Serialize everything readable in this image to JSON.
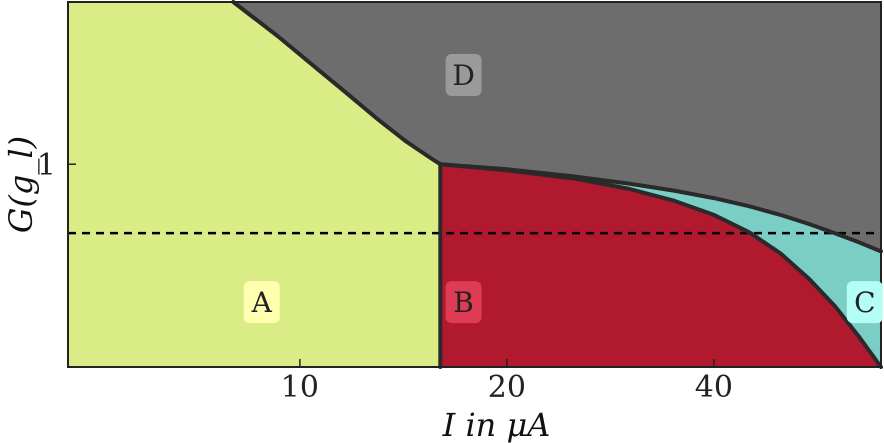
{
  "chart_data": {
    "type": "area",
    "title": "",
    "xlabel": "I in μA",
    "ylabel": "G(g_l)",
    "xlim": [
      4.6,
      70
    ],
    "ylim": [
      0,
      1.8
    ],
    "x_ticks": [
      10,
      20,
      40
    ],
    "x_tick_labels": [
      "10",
      "20",
      "40"
    ],
    "y_ticks": [
      1
    ],
    "y_tick_labels": [
      "1"
    ],
    "grid": false,
    "legend": "none",
    "horizontal_reference": {
      "y": 0.66,
      "style": "dashed",
      "color": "#000000"
    },
    "curves": {
      "boundary_AD": {
        "x": [
          8.0,
          9.3,
          10.6,
          11.7,
          13.0,
          14.3,
          15.5,
          16.0
        ],
        "y": [
          1.8,
          1.63,
          1.47,
          1.35,
          1.22,
          1.11,
          1.03,
          1.0
        ]
      },
      "boundary_AB": {
        "x": [
          16.0,
          16.0
        ],
        "y": [
          1.0,
          0.0
        ]
      },
      "upper_boundary": {
        "x": [
          16.0,
          20.0,
          25.0,
          30.0,
          35.0,
          40.0,
          45.0,
          50.0,
          55.0,
          60.0,
          65.0,
          70.0
        ],
        "y": [
          1.0,
          0.975,
          0.94,
          0.905,
          0.87,
          0.833,
          0.793,
          0.75,
          0.705,
          0.66,
          0.615,
          0.57
        ]
      },
      "boundary_BC": {
        "x": [
          16.0,
          20.0,
          25.0,
          30.0,
          35.0,
          40.0,
          45.0,
          50.0,
          55.0,
          60.0,
          65.0,
          70.0
        ],
        "y": [
          1.0,
          0.97,
          0.93,
          0.88,
          0.82,
          0.75,
          0.665,
          0.56,
          0.435,
          0.3,
          0.15,
          0.0
        ]
      }
    },
    "regions": [
      {
        "label": "A",
        "fill": "#d9ec86",
        "badge": "#ffffb0"
      },
      {
        "label": "B",
        "fill": "#b0192e",
        "badge": "#de3c55"
      },
      {
        "label": "C",
        "fill": "#7acec6",
        "badge": "#b3fff5"
      },
      {
        "label": "D",
        "fill": "#6d6d6d",
        "badge": "#9a9a9a"
      }
    ],
    "region_label_points": {
      "A": {
        "x": 8.8,
        "y": 0.32
      },
      "B": {
        "x": 17.3,
        "y": 0.32
      },
      "C": {
        "x": 66.3,
        "y": 0.32
      },
      "D": {
        "x": 17.3,
        "y": 1.44
      }
    }
  }
}
